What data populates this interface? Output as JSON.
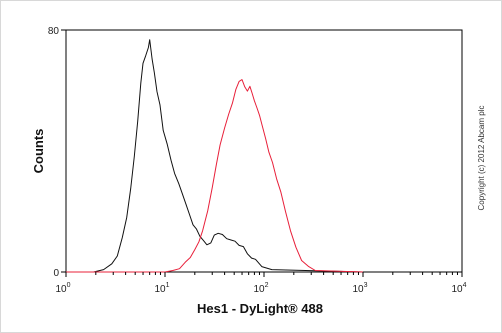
{
  "chart_data": {
    "type": "line",
    "xlabel": "Hes1 - DyLight® 488",
    "ylabel": "Counts",
    "xscale": "log",
    "xlim": [
      1,
      10000
    ],
    "ylim": [
      0,
      80
    ],
    "yticks": [
      {
        "value": 0,
        "label": "0"
      },
      {
        "value": 80,
        "label": "80"
      }
    ],
    "xticks": [
      {
        "value": 1,
        "base": "10",
        "exp": "0"
      },
      {
        "value": 10,
        "base": "10",
        "exp": "1"
      },
      {
        "value": 100,
        "base": "10",
        "exp": "2"
      },
      {
        "value": 1000,
        "base": "10",
        "exp": "3"
      },
      {
        "value": 10000,
        "base": "10",
        "exp": "4"
      }
    ],
    "grid": false,
    "series": [
      {
        "color": "#111111",
        "x": [
          1.0,
          1.9,
          2.4,
          2.9,
          3.3,
          3.7,
          4.1,
          4.5,
          4.9,
          5.3,
          5.7,
          6.0,
          6.4,
          6.8,
          7.0,
          7.4,
          7.8,
          8.3,
          8.9,
          9.6,
          10.5,
          11.5,
          12.5,
          13.8,
          15.0,
          16.3,
          17.7,
          19.2,
          20.8,
          22.5,
          24.5,
          26.5,
          29.0,
          31.5,
          34.5,
          38.0,
          42.0,
          46.0,
          51.0,
          56.0,
          62.0,
          68.0,
          75.0,
          82.0,
          95.0,
          120.0,
          1000.0
        ],
        "y": [
          0,
          0,
          0.8,
          2.5,
          5.5,
          11,
          18,
          28,
          38,
          50,
          62,
          69,
          72,
          74,
          77,
          70,
          66,
          60,
          55,
          47,
          42,
          37,
          33,
          29,
          26,
          22,
          19,
          16,
          14,
          12,
          10,
          9,
          10,
          12,
          13,
          12,
          11,
          11,
          10,
          9,
          8,
          6,
          5,
          4,
          2,
          0.8,
          0
        ]
      },
      {
        "color": "#e8203a",
        "x": [
          1.0,
          10.0,
          12.0,
          14.0,
          16.0,
          18.0,
          20.0,
          22.0,
          24.0,
          27.0,
          30.0,
          33.0,
          36.0,
          40.0,
          44.0,
          48.0,
          52.0,
          56.0,
          60.0,
          64.0,
          68.0,
          72.0,
          76.0,
          80.0,
          85.0,
          90.0,
          96.0,
          104.0,
          112.0,
          122.0,
          134.0,
          148.0,
          165.0,
          185.0,
          210.0,
          240.0,
          280.0,
          330.0,
          1000.0
        ],
        "y": [
          0,
          0,
          0.5,
          1.5,
          3,
          5,
          7,
          10,
          14,
          20,
          28,
          35,
          42,
          48,
          52,
          56,
          60,
          63,
          64,
          61,
          60,
          61,
          59,
          57,
          54,
          52,
          48,
          44,
          40,
          36,
          31,
          26,
          20,
          14,
          8,
          4,
          1.5,
          0.5,
          0
        ]
      }
    ]
  },
  "copyright": "Copyright (c) 2012 Abcam plc"
}
